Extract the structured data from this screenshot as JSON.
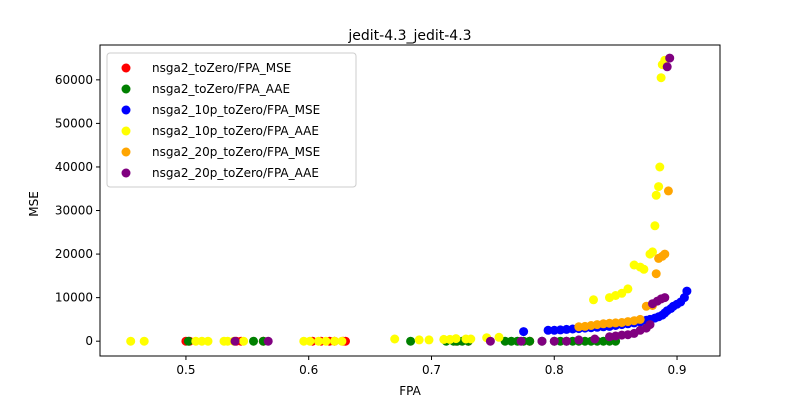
{
  "chart_data": {
    "type": "scatter",
    "title": "jedit-4.3_jedit-4.3",
    "xlabel": "FPA",
    "ylabel": "MSE",
    "xlim": [
      0.43,
      0.935
    ],
    "ylim": [
      -3400,
      68000
    ],
    "xticks": [
      0.5,
      0.6,
      0.7,
      0.8,
      0.9
    ],
    "xtick_labels": [
      "0.5",
      "0.6",
      "0.7",
      "0.8",
      "0.9"
    ],
    "yticks": [
      0,
      10000,
      20000,
      30000,
      40000,
      50000,
      60000
    ],
    "ytick_labels": [
      "0",
      "10000",
      "20000",
      "30000",
      "40000",
      "50000",
      "60000"
    ],
    "grid": false,
    "legend_position": "upper-left",
    "series": [
      {
        "name": "nsga2_toZero/FPA_MSE",
        "color": "#ff0000",
        "x": [
          0.5,
          0.503,
          0.541,
          0.545,
          0.563,
          0.603,
          0.61,
          0.617,
          0.621,
          0.628,
          0.63,
          0.72,
          0.73,
          0.78
        ],
        "y": [
          0,
          0,
          0,
          0,
          0,
          0,
          0,
          0,
          0,
          0,
          0,
          0,
          0,
          0
        ]
      },
      {
        "name": "nsga2_toZero/FPA_AAE",
        "color": "#008000",
        "x": [
          0.502,
          0.555,
          0.563,
          0.683,
          0.712,
          0.718,
          0.721,
          0.725,
          0.73,
          0.76,
          0.765,
          0.77,
          0.775,
          0.78,
          0.79,
          0.8,
          0.805,
          0.81,
          0.815,
          0.82,
          0.825,
          0.83,
          0.835,
          0.84,
          0.845,
          0.85
        ],
        "y": [
          0,
          0,
          0,
          0,
          0,
          0,
          0,
          0,
          0,
          0,
          0,
          0,
          0,
          0,
          0,
          0,
          0,
          0,
          0,
          0,
          0,
          0,
          0,
          0,
          0,
          0
        ]
      },
      {
        "name": "nsga2_10p_toZero/FPA_MSE",
        "color": "#0000ff",
        "x": [
          0.775,
          0.795,
          0.8,
          0.805,
          0.81,
          0.815,
          0.82,
          0.825,
          0.83,
          0.835,
          0.84,
          0.845,
          0.85,
          0.855,
          0.86,
          0.865,
          0.87,
          0.875,
          0.878,
          0.882,
          0.885,
          0.888,
          0.89,
          0.892,
          0.895,
          0.897,
          0.9,
          0.903,
          0.906,
          0.908
        ],
        "y": [
          2200,
          2500,
          2500,
          2600,
          2700,
          2800,
          2900,
          3000,
          3100,
          3200,
          3300,
          3400,
          3600,
          3800,
          4000,
          4200,
          4400,
          4800,
          5000,
          5300,
          5600,
          6000,
          6500,
          7000,
          7500,
          8000,
          8500,
          9000,
          10000,
          11500
        ]
      },
      {
        "name": "nsga2_10p_toZero/FPA_AAE",
        "color": "#ffff00",
        "x": [
          0.455,
          0.466,
          0.508,
          0.513,
          0.518,
          0.531,
          0.534,
          0.539,
          0.547,
          0.596,
          0.601,
          0.608,
          0.614,
          0.621,
          0.627,
          0.67,
          0.69,
          0.698,
          0.71,
          0.715,
          0.72,
          0.728,
          0.732,
          0.745,
          0.755,
          0.832,
          0.845,
          0.85,
          0.855,
          0.86,
          0.865,
          0.87,
          0.873,
          0.878,
          0.88,
          0.882,
          0.883,
          0.885,
          0.886,
          0.887,
          0.888,
          0.89
        ],
        "y": [
          0,
          0,
          0,
          0,
          0,
          0,
          0,
          0,
          0,
          0,
          0,
          0,
          0,
          0,
          0,
          500,
          300,
          300,
          400,
          400,
          600,
          500,
          500,
          800,
          900,
          9500,
          10000,
          10500,
          11000,
          12000,
          17500,
          17000,
          16500,
          20000,
          20500,
          26500,
          33500,
          35500,
          40000,
          60500,
          63500,
          64500
        ]
      },
      {
        "name": "nsga2_20p_toZero/FPA_MSE",
        "color": "#ffa500",
        "x": [
          0.82,
          0.825,
          0.83,
          0.835,
          0.84,
          0.845,
          0.85,
          0.855,
          0.86,
          0.865,
          0.87,
          0.875,
          0.88,
          0.883,
          0.885,
          0.888,
          0.89,
          0.893
        ],
        "y": [
          3300,
          3400,
          3600,
          3800,
          4000,
          4100,
          4200,
          4300,
          4500,
          4700,
          5000,
          8000,
          8200,
          15500,
          19000,
          19500,
          20000,
          34500
        ]
      },
      {
        "name": "nsga2_20p_toZero/FPA_AAE",
        "color": "#800080",
        "x": [
          0.54,
          0.567,
          0.748,
          0.773,
          0.79,
          0.8,
          0.81,
          0.82,
          0.833,
          0.845,
          0.85,
          0.855,
          0.86,
          0.865,
          0.87,
          0.875,
          0.878,
          0.88,
          0.884,
          0.887,
          0.89,
          0.892,
          0.894
        ],
        "y": [
          0,
          0,
          0,
          0,
          0,
          0,
          0,
          300,
          500,
          1000,
          1200,
          1400,
          1500,
          1800,
          2500,
          3000,
          3800,
          8600,
          9200,
          9700,
          10000,
          63000,
          65000
        ]
      }
    ]
  }
}
